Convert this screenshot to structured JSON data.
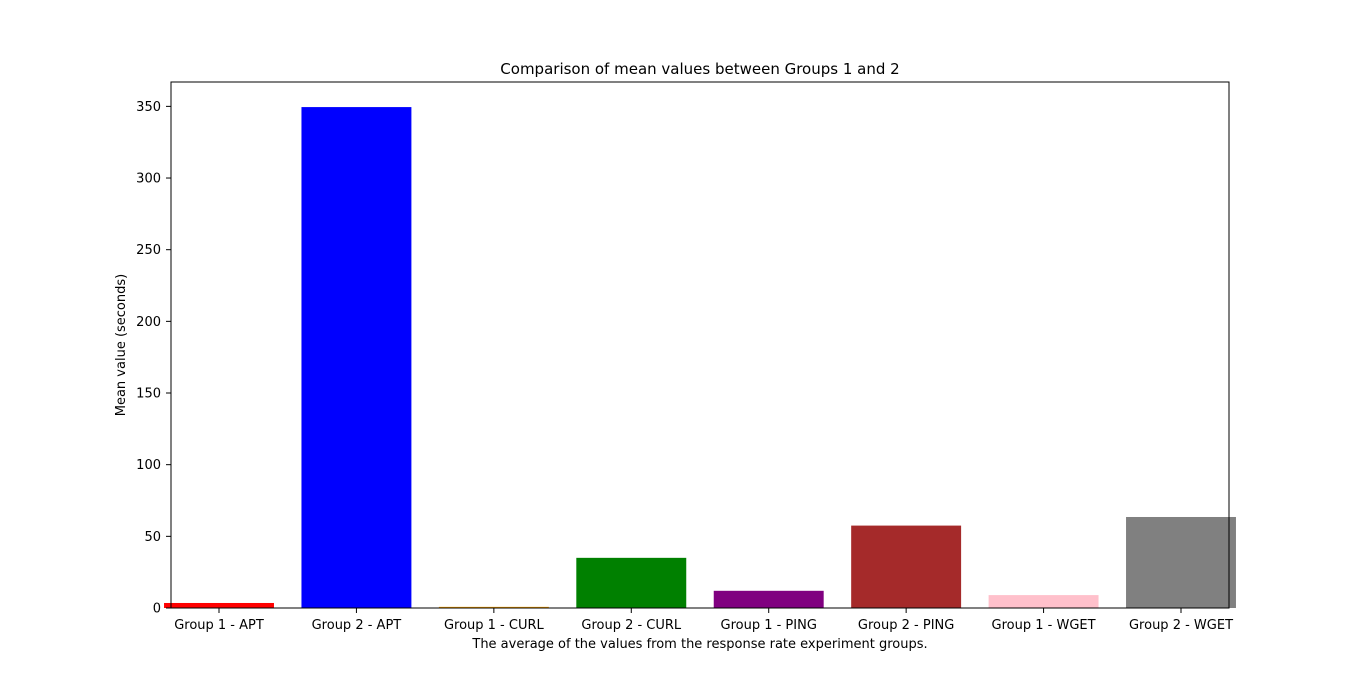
{
  "chart_data": {
    "type": "bar",
    "title": "Comparison of mean values between Groups 1 and 2",
    "xlabel": "The average of the values from the response rate experiment groups.",
    "ylabel": "Mean value (seconds)",
    "ylim": [
      0,
      367
    ],
    "yticks": [
      0,
      50,
      100,
      150,
      200,
      250,
      300,
      350
    ],
    "grid": false,
    "categories": [
      "Group 1 - APT",
      "Group 2 - APT",
      "Group 1 - CURL",
      "Group 2 - CURL",
      "Group 1 - PING",
      "Group 2 - PING",
      "Group 1 - WGET",
      "Group 2 - WGET"
    ],
    "values": [
      3.5,
      349.5,
      0.8,
      35.0,
      12.0,
      57.5,
      9.0,
      63.5
    ],
    "colors": [
      "#ff0000",
      "#0000ff",
      "#ffa500",
      "#008000",
      "#800080",
      "#a52a2a",
      "#ffc0cb",
      "#808080"
    ]
  }
}
